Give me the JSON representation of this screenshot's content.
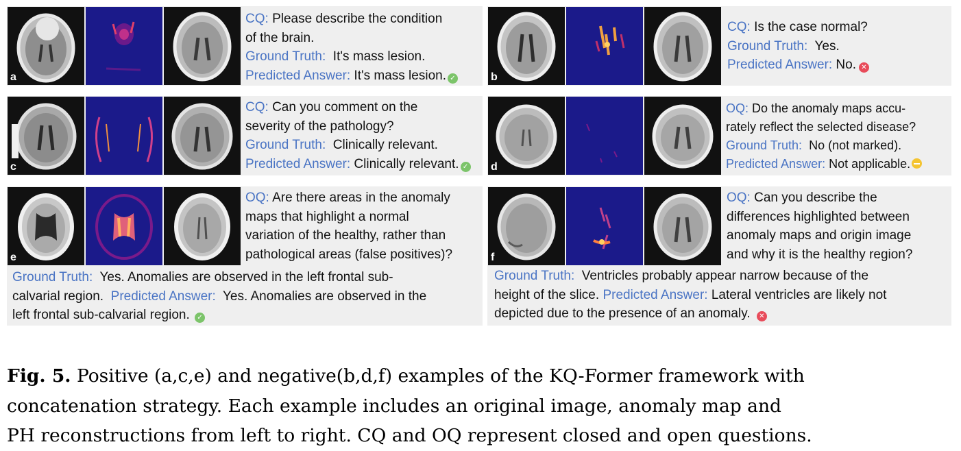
{
  "colors": {
    "label_blue": "#4a74c4",
    "panel_bg": "#efefef",
    "map_bg": "#1b1a8a",
    "correct": "#7cc46a",
    "wrong": "#e84b5a",
    "na": "#f4c431"
  },
  "panels": {
    "a": {
      "letter": "a",
      "q_label": "CQ:",
      "q_line1": "Please describe the condition",
      "q_line2": "of the brain.",
      "gt_label": "Ground Truth:",
      "gt_text": "It's mass lesion.",
      "pa_label": "Predicted Answer:",
      "pa_text": "It's mass lesion.",
      "status": "correct-icon"
    },
    "b": {
      "letter": "b",
      "q_label": "CQ:",
      "q_text": "Is the case normal?",
      "gt_label": "Ground Truth:",
      "gt_text": "Yes.",
      "pa_label": "Predicted Answer:",
      "pa_text": "No.",
      "status": "wrong-icon"
    },
    "c": {
      "letter": "c",
      "q_label": "CQ:",
      "q_line1": "Can you comment on the",
      "q_line2": "severity of the pathology?",
      "gt_label": "Ground Truth:",
      "gt_text": "Clinically relevant.",
      "pa_label": "Predicted Answer:",
      "pa_text": "Clinically relevant.",
      "status": "correct-icon"
    },
    "d": {
      "letter": "d",
      "q_label": "OQ:",
      "q_line1": "Do the anomaly maps accu-",
      "q_line2": "rately reflect the selected disease?",
      "gt_label": "Ground Truth:",
      "gt_text": "No (not marked).",
      "pa_label": "Predicted Answer:",
      "pa_text": "Not applicable.",
      "status": "not-applicable-icon"
    },
    "e": {
      "letter": "e",
      "q_label": "OQ:",
      "q_line1": "Are there areas in the anomaly",
      "q_line2": "maps that highlight a normal",
      "q_line3": "variation of the healthy, rather than",
      "q_line4": "pathological areas (false positives)?",
      "gt_label": "Ground Truth:",
      "gt_line1": "Yes. Anomalies are observed in the left frontal sub-",
      "gt_line2": "calvarial region.",
      "pa_label": "Predicted Answer:",
      "pa_line1": "Yes. Anomalies are observed in the",
      "pa_line2": "left frontal sub-calvarial region.",
      "status": "correct-icon"
    },
    "f": {
      "letter": "f",
      "q_label": "OQ:",
      "q_line1": "Can you describe the",
      "q_line2": "differences highlighted between",
      "q_line3": "anomaly maps and origin image",
      "q_line4": "and why it is the healthy region?",
      "gt_label": "Ground Truth:",
      "gt_line1": "Ventricles probably appear narrow because of the",
      "gt_line2": "height of the slice.",
      "pa_label": "Predicted Answer:",
      "pa_line1": "Lateral ventricles are likely not",
      "pa_line2": "depicted due to the presence of an anomaly.",
      "status": "wrong-icon"
    }
  },
  "caption": {
    "label": "Fig. 5.",
    "line1": "Positive (a,c,e) and negative(b,d,f) examples of the KQ-Former framework with",
    "line2": "concatenation strategy. Each example includes an original image, anomaly map and",
    "line3": "PH reconstructions from left to right. CQ and OQ represent closed and open questions."
  }
}
